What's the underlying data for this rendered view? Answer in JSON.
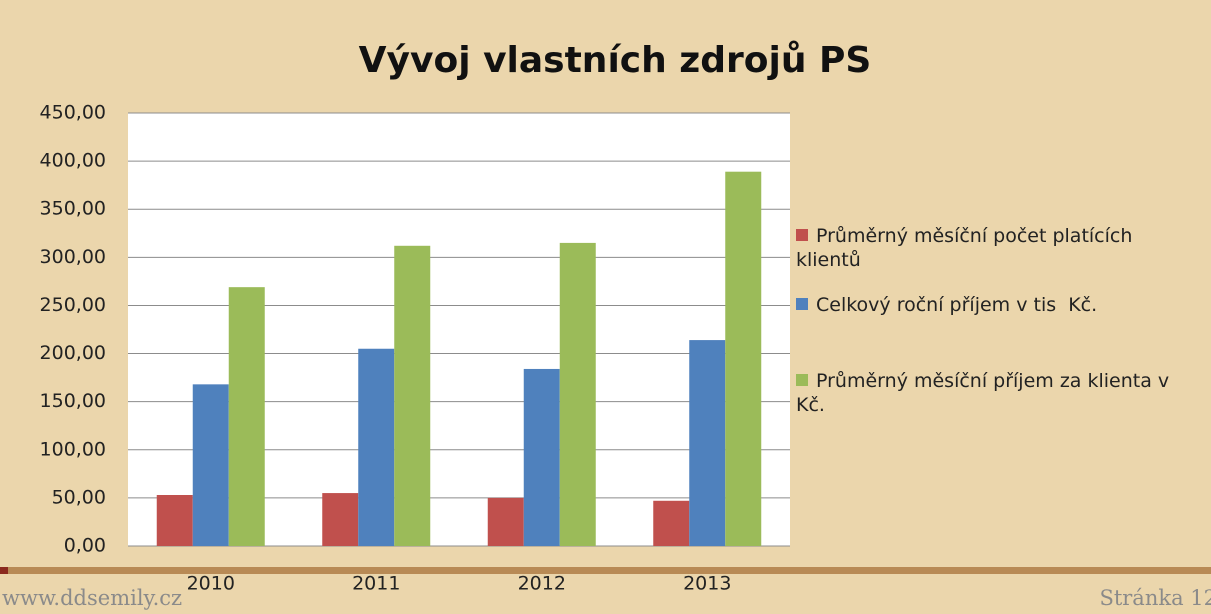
{
  "chart_data": {
    "type": "bar",
    "title": "Vývoj vlastních zdrojů PS",
    "categories": [
      "2010",
      "2011",
      "2012",
      "2013"
    ],
    "series": [
      {
        "name": "Průměrný měsíční počet platících klientů",
        "color": "#c0504d",
        "values": [
          53,
          55,
          50,
          47
        ]
      },
      {
        "name": "Celkový roční příjem v tis  Kč.",
        "color": "#4f81bd",
        "values": [
          168,
          205,
          184,
          214
        ]
      },
      {
        "name": "Průměrný měsíční příjem za klienta v Kč.",
        "color": "#9bbb59",
        "values": [
          269,
          312,
          315,
          389
        ]
      }
    ],
    "ylim": [
      0,
      450
    ],
    "yticks": [
      {
        "value": 0,
        "label": "0,00"
      },
      {
        "value": 50,
        "label": "50,00"
      },
      {
        "value": 100,
        "label": "100,00"
      },
      {
        "value": 150,
        "label": "150,00"
      },
      {
        "value": 200,
        "label": "200,00"
      },
      {
        "value": 250,
        "label": "250,00"
      },
      {
        "value": 300,
        "label": "300,00"
      },
      {
        "value": 350,
        "label": "350,00"
      },
      {
        "value": 400,
        "label": "400,00"
      },
      {
        "value": 450,
        "label": "450,00"
      }
    ],
    "grid": true,
    "legend": "right"
  },
  "footer": {
    "left": "www.ddsemily.cz",
    "right": "Stránka 12"
  }
}
